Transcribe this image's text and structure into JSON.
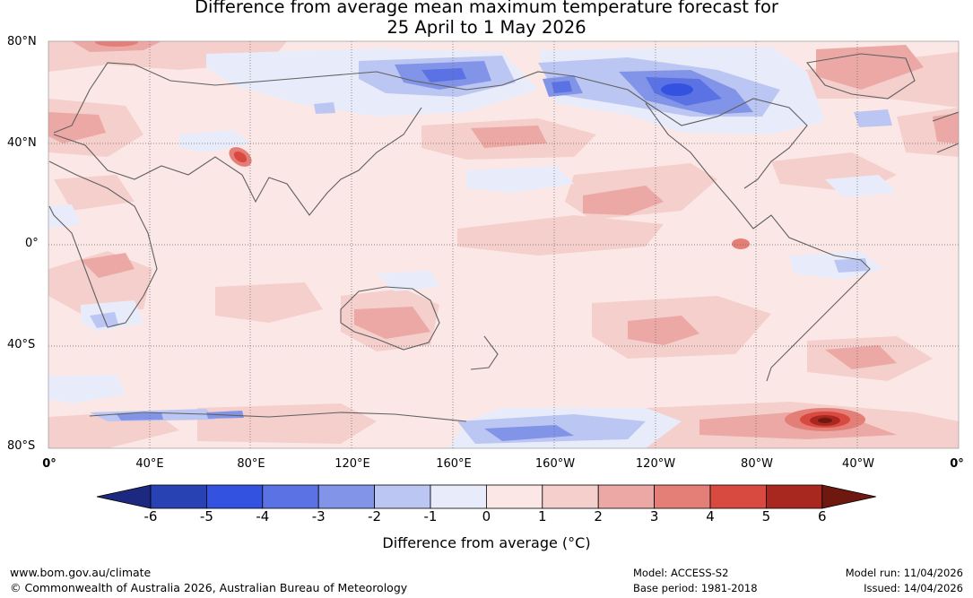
{
  "title": {
    "line1": "Difference from average mean maximum temperature forecast for",
    "line2": "25 April to 1 May 2026"
  },
  "map": {
    "lat_labels": [
      "80°N",
      "40°N",
      "0°",
      "40°S",
      "80°S"
    ],
    "lon_labels": [
      "0°",
      "40°E",
      "80°E",
      "120°E",
      "160°E",
      "160°W",
      "120°W",
      "80°W",
      "40°W",
      "0°"
    ]
  },
  "colorbar": {
    "ticks": [
      "-6",
      "-5",
      "-4",
      "-3",
      "-2",
      "-1",
      "0",
      "1",
      "2",
      "3",
      "4",
      "5",
      "6"
    ],
    "colors": [
      "#1d2880",
      "#2842b4",
      "#3452e0",
      "#5a72e4",
      "#8294e8",
      "#bcc6f2",
      "#e8ecfa",
      "#fbe8e6",
      "#f4cfcc",
      "#eba8a4",
      "#e47f78",
      "#d84a40",
      "#a82820",
      "#6e1810"
    ],
    "label": "Difference from average (°C)"
  },
  "footer": {
    "website": "www.bom.gov.au/climate",
    "copyright": "© Commonwealth of Australia 2026, Australian Bureau of Meteorology",
    "model": "Model: ACCESS-S2",
    "base_period": "Base period: 1981-2018",
    "model_run": "Model run: 11/04/2026",
    "issued": "Issued: 14/04/2026"
  }
}
